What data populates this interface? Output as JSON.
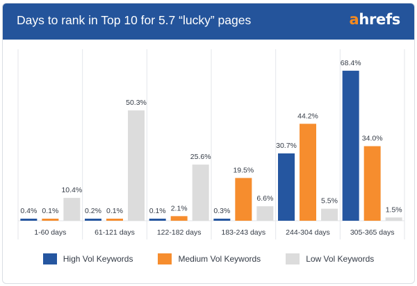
{
  "header": {
    "title": "Days to rank in Top 10 for 5.7 “lucky” pages",
    "logo_accent": "a",
    "logo_rest": "hrefs"
  },
  "colors": {
    "header_bg": "#24549b",
    "high": "#2556a0",
    "medium": "#f68d2e",
    "low": "#dcdcdc",
    "logo_accent": "#f58a1f"
  },
  "chart_data": {
    "type": "bar",
    "title": "Days to rank in Top 10 for 5.7 “lucky” pages",
    "xlabel": "",
    "ylabel": "",
    "ylim": [
      0,
      75
    ],
    "grid": "vertical category separators",
    "legend_position": "bottom",
    "value_suffix": "%",
    "categories": [
      "1-60 days",
      "61-121 days",
      "122-182 days",
      "183-243 days",
      "244-304 days",
      "305-365 days"
    ],
    "series": [
      {
        "name": "High Vol Keywords",
        "color": "#2556a0",
        "values": [
          0.4,
          0.2,
          0.1,
          0.3,
          30.7,
          68.4
        ]
      },
      {
        "name": "Medium Vol Keywords",
        "color": "#f68d2e",
        "values": [
          0.1,
          0.1,
          2.1,
          19.5,
          44.2,
          34.0
        ]
      },
      {
        "name": "Low Vol Keywords",
        "color": "#dcdcdc",
        "values": [
          10.4,
          50.3,
          25.6,
          6.6,
          5.5,
          1.5
        ]
      }
    ]
  }
}
